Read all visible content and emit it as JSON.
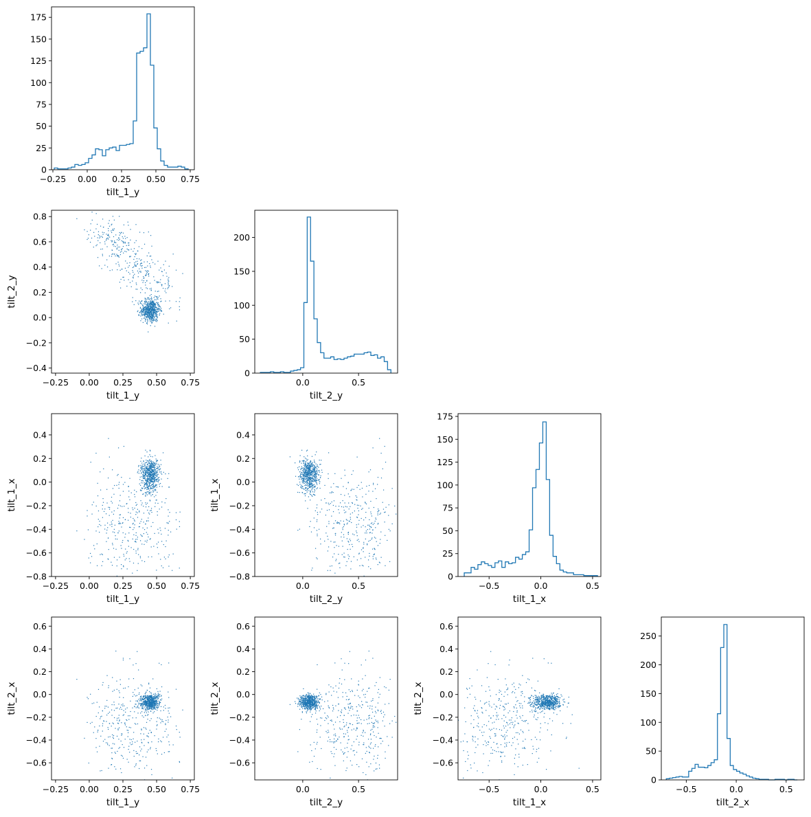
{
  "figure": {
    "type": "corner-plot"
  },
  "chart_data": [
    {
      "type": "histogram",
      "row": 0,
      "col": 0,
      "xlabel": "tilt_1_y",
      "ylabel": "",
      "xlim": [
        -0.26,
        0.78
      ],
      "ylim": [
        0,
        187
      ],
      "xticks": [
        -0.25,
        0.0,
        0.25,
        0.5,
        0.75
      ],
      "xtick_labels": [
        "−0.25",
        "0.00",
        "0.25",
        "0.50",
        "0.75"
      ],
      "yticks": [
        0,
        25,
        50,
        75,
        100,
        125,
        150,
        175
      ],
      "ytick_labels": [
        "0",
        "25",
        "50",
        "75",
        "100",
        "125",
        "150",
        "175"
      ],
      "bin_edges": [
        -0.24,
        -0.215,
        -0.19,
        -0.165,
        -0.14,
        -0.115,
        -0.09,
        -0.065,
        -0.04,
        -0.015,
        0.01,
        0.035,
        0.06,
        0.085,
        0.11,
        0.135,
        0.16,
        0.185,
        0.21,
        0.235,
        0.26,
        0.285,
        0.31,
        0.335,
        0.36,
        0.385,
        0.41,
        0.435,
        0.46,
        0.485,
        0.51,
        0.535,
        0.56,
        0.585,
        0.61,
        0.635,
        0.66,
        0.685,
        0.71,
        0.735
      ],
      "counts": [
        2,
        1,
        1,
        1,
        2,
        3,
        6,
        5,
        6,
        8,
        13,
        17,
        24,
        23,
        16,
        23,
        25,
        26,
        22,
        28,
        28,
        29,
        30,
        56,
        134,
        136,
        140,
        179,
        120,
        48,
        24,
        10,
        5,
        3,
        3,
        3,
        4,
        3,
        1
      ]
    },
    {
      "type": "scatter",
      "row": 1,
      "col": 0,
      "xlabel": "tilt_1_y",
      "ylabel": "tilt_2_y",
      "xlim": [
        -0.28,
        0.78
      ],
      "ylim": [
        -0.44,
        0.85
      ],
      "xticks": [
        -0.25,
        0.0,
        0.25,
        0.5,
        0.75
      ],
      "xtick_labels": [
        "−0.25",
        "0.00",
        "0.25",
        "0.50",
        "0.75"
      ],
      "yticks": [
        -0.4,
        -0.2,
        0.0,
        0.2,
        0.4,
        0.6,
        0.8
      ],
      "ytick_labels": [
        "−0.4",
        "−0.2",
        "0.0",
        "0.2",
        "0.4",
        "0.6",
        "0.8"
      ]
    },
    {
      "type": "histogram",
      "row": 1,
      "col": 1,
      "xlabel": "tilt_2_y",
      "ylabel": "",
      "xlim": [
        -0.43,
        0.85
      ],
      "ylim": [
        0,
        240
      ],
      "xticks": [
        0.0,
        0.5
      ],
      "xtick_labels": [
        "0.0",
        "0.5"
      ],
      "yticks": [
        0,
        50,
        100,
        150,
        200
      ],
      "ytick_labels": [
        "0",
        "50",
        "100",
        "150",
        "200"
      ],
      "bin_edges": [
        -0.38,
        -0.35,
        -0.32,
        -0.29,
        -0.26,
        -0.23,
        -0.2,
        -0.17,
        -0.14,
        -0.11,
        -0.08,
        -0.05,
        -0.02,
        0.01,
        0.04,
        0.07,
        0.1,
        0.13,
        0.16,
        0.19,
        0.22,
        0.25,
        0.28,
        0.31,
        0.34,
        0.37,
        0.4,
        0.43,
        0.46,
        0.49,
        0.52,
        0.55,
        0.58,
        0.61,
        0.64,
        0.67,
        0.7,
        0.73,
        0.76,
        0.79
      ],
      "counts": [
        1,
        1,
        1,
        2,
        1,
        1,
        2,
        1,
        1,
        3,
        4,
        5,
        8,
        104,
        230,
        165,
        80,
        45,
        30,
        22,
        22,
        24,
        20,
        21,
        20,
        22,
        24,
        25,
        28,
        28,
        28,
        30,
        31,
        26,
        27,
        22,
        24,
        17,
        5
      ]
    },
    {
      "type": "scatter",
      "row": 2,
      "col": 0,
      "xlabel": "tilt_1_y",
      "ylabel": "tilt_1_x",
      "xlim": [
        -0.28,
        0.78
      ],
      "ylim": [
        -0.8,
        0.58
      ],
      "xticks": [
        -0.25,
        0.0,
        0.25,
        0.5,
        0.75
      ],
      "xtick_labels": [
        "−0.25",
        "0.00",
        "0.25",
        "0.50",
        "0.75"
      ],
      "yticks": [
        -0.8,
        -0.6,
        -0.4,
        -0.2,
        0.0,
        0.2,
        0.4
      ],
      "ytick_labels": [
        "−0.8",
        "−0.6",
        "−0.4",
        "−0.2",
        "0.0",
        "0.2",
        "0.4"
      ]
    },
    {
      "type": "scatter",
      "row": 2,
      "col": 1,
      "xlabel": "tilt_2_y",
      "ylabel": "tilt_1_x",
      "xlim": [
        -0.43,
        0.85
      ],
      "ylim": [
        -0.8,
        0.58
      ],
      "xticks": [
        0.0,
        0.5
      ],
      "xtick_labels": [
        "0.0",
        "0.5"
      ],
      "yticks": [
        -0.8,
        -0.6,
        -0.4,
        -0.2,
        0.0,
        0.2,
        0.4
      ],
      "ytick_labels": [
        "−0.8",
        "−0.6",
        "−0.4",
        "−0.2",
        "0.0",
        "0.2",
        "0.4"
      ]
    },
    {
      "type": "histogram",
      "row": 2,
      "col": 2,
      "xlabel": "tilt_1_x",
      "ylabel": "",
      "xlim": [
        -0.8,
        0.58
      ],
      "ylim": [
        0,
        178
      ],
      "xticks": [
        -0.5,
        0.0,
        0.5
      ],
      "xtick_labels": [
        "−0.5",
        "0.0",
        "0.5"
      ],
      "yticks": [
        0,
        25,
        50,
        75,
        100,
        125,
        150,
        175
      ],
      "ytick_labels": [
        "0",
        "25",
        "50",
        "75",
        "100",
        "125",
        "150",
        "175"
      ],
      "bin_edges": [
        -0.74,
        -0.707,
        -0.674,
        -0.641,
        -0.608,
        -0.575,
        -0.542,
        -0.509,
        -0.476,
        -0.443,
        -0.41,
        -0.377,
        -0.344,
        -0.311,
        -0.278,
        -0.245,
        -0.212,
        -0.179,
        -0.146,
        -0.113,
        -0.08,
        -0.047,
        -0.014,
        0.019,
        0.052,
        0.085,
        0.118,
        0.151,
        0.184,
        0.217,
        0.25,
        0.283,
        0.316,
        0.349,
        0.382,
        0.415,
        0.448,
        0.481,
        0.514,
        0.547
      ],
      "counts": [
        4,
        4,
        10,
        8,
        13,
        16,
        14,
        12,
        10,
        15,
        17,
        10,
        16,
        14,
        15,
        21,
        19,
        24,
        27,
        51,
        97,
        117,
        146,
        169,
        106,
        45,
        22,
        14,
        7,
        5,
        4,
        4,
        2,
        2,
        2,
        1,
        1,
        1,
        1
      ]
    },
    {
      "type": "scatter",
      "row": 3,
      "col": 0,
      "xlabel": "tilt_1_y",
      "ylabel": "tilt_2_x",
      "xlim": [
        -0.28,
        0.78
      ],
      "ylim": [
        -0.75,
        0.68
      ],
      "xticks": [
        -0.25,
        0.0,
        0.25,
        0.5,
        0.75
      ],
      "xtick_labels": [
        "−0.25",
        "0.00",
        "0.25",
        "0.50",
        "0.75"
      ],
      "yticks": [
        -0.6,
        -0.4,
        -0.2,
        0.0,
        0.2,
        0.4,
        0.6
      ],
      "ytick_labels": [
        "−0.6",
        "−0.4",
        "−0.2",
        "0.0",
        "0.2",
        "0.4",
        "0.6"
      ]
    },
    {
      "type": "scatter",
      "row": 3,
      "col": 1,
      "xlabel": "tilt_2_y",
      "ylabel": "tilt_2_x",
      "xlim": [
        -0.43,
        0.85
      ],
      "ylim": [
        -0.75,
        0.68
      ],
      "xticks": [
        0.0,
        0.5
      ],
      "xtick_labels": [
        "0.0",
        "0.5"
      ],
      "yticks": [
        -0.6,
        -0.4,
        -0.2,
        0.0,
        0.2,
        0.4,
        0.6
      ],
      "ytick_labels": [
        "−0.6",
        "−0.4",
        "−0.2",
        "0.0",
        "0.2",
        "0.4",
        "0.6"
      ]
    },
    {
      "type": "scatter",
      "row": 3,
      "col": 2,
      "xlabel": "tilt_1_x",
      "ylabel": "tilt_2_x",
      "xlim": [
        -0.8,
        0.58
      ],
      "ylim": [
        -0.75,
        0.68
      ],
      "xticks": [
        -0.5,
        0.0,
        0.5
      ],
      "xtick_labels": [
        "−0.5",
        "0.0",
        "0.5"
      ],
      "yticks": [
        -0.6,
        -0.4,
        -0.2,
        0.0,
        0.2,
        0.4,
        0.6
      ],
      "ytick_labels": [
        "−0.6",
        "−0.4",
        "−0.2",
        "0.0",
        "0.2",
        "0.4",
        "0.6"
      ]
    },
    {
      "type": "histogram",
      "row": 3,
      "col": 3,
      "xlabel": "tilt_2_x",
      "ylabel": "",
      "xlim": [
        -0.75,
        0.68
      ],
      "ylim": [
        0,
        283
      ],
      "xticks": [
        -0.5,
        0.0,
        0.5
      ],
      "xtick_labels": [
        "−0.5",
        "0.0",
        "0.5"
      ],
      "yticks": [
        0,
        50,
        100,
        150,
        200,
        250
      ],
      "ytick_labels": [
        "0",
        "50",
        "100",
        "150",
        "200",
        "250"
      ],
      "bin_edges": [
        -0.7,
        -0.668,
        -0.636,
        -0.604,
        -0.572,
        -0.54,
        -0.508,
        -0.476,
        -0.444,
        -0.412,
        -0.38,
        -0.348,
        -0.316,
        -0.284,
        -0.252,
        -0.22,
        -0.188,
        -0.156,
        -0.124,
        -0.092,
        -0.06,
        -0.028,
        0.004,
        0.036,
        0.068,
        0.1,
        0.132,
        0.164,
        0.196,
        0.228,
        0.26,
        0.292,
        0.324,
        0.356,
        0.388,
        0.42,
        0.452,
        0.484,
        0.516,
        0.548,
        0.58,
        0.612
      ],
      "counts": [
        2,
        3,
        4,
        5,
        6,
        5,
        5,
        15,
        20,
        27,
        22,
        22,
        21,
        25,
        30,
        35,
        115,
        230,
        270,
        72,
        25,
        18,
        15,
        12,
        10,
        7,
        5,
        3,
        2,
        1,
        1,
        1,
        0,
        0,
        1,
        1,
        1,
        0,
        1,
        1,
        0
      ]
    }
  ],
  "colors": {
    "series": "#1f77b4",
    "axes": "#000000",
    "background": "#ffffff"
  }
}
